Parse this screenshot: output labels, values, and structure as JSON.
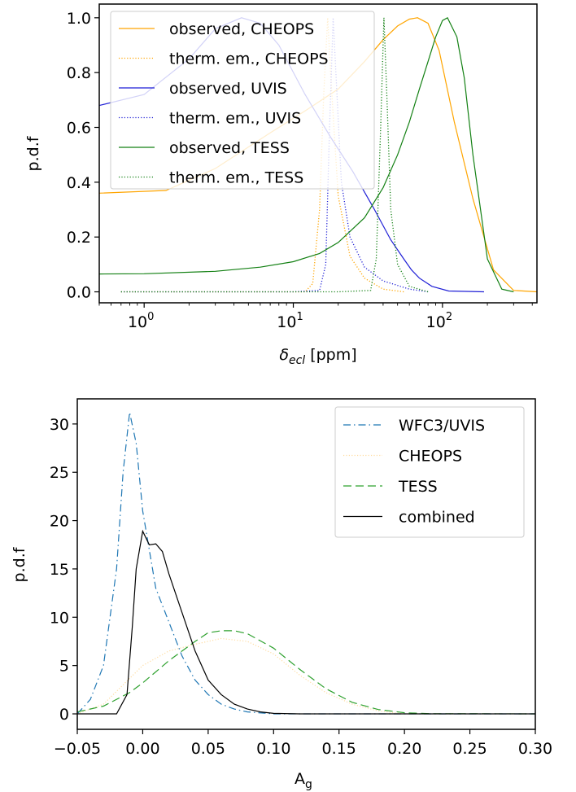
{
  "figure": {
    "top": {
      "ylabel": "p.d.f",
      "xlabel_symbol": "δ",
      "xlabel_sub": "ecl",
      "xlabel_unit": " [ppm]",
      "x_ticks": [
        {
          "base": "10",
          "exp": "0",
          "value": 1
        },
        {
          "base": "10",
          "exp": "1",
          "value": 10
        },
        {
          "base": "10",
          "exp": "2",
          "value": 100
        }
      ],
      "y_ticks": [
        "0.0",
        "0.2",
        "0.4",
        "0.6",
        "0.8",
        "1.0"
      ]
    },
    "bottom": {
      "ylabel": "p.d.f",
      "xlabel": "A",
      "xlabel_sub": "g",
      "x_ticks": [
        "−0.05",
        "0.00",
        "0.05",
        "0.10",
        "0.15",
        "0.20",
        "0.25",
        "0.30"
      ],
      "y_ticks": [
        "0",
        "5",
        "10",
        "15",
        "20",
        "25",
        "30"
      ]
    }
  },
  "chart_data": [
    {
      "type": "line",
      "xscale": "log",
      "xlim": [
        0.5,
        430
      ],
      "ylim": [
        -0.04,
        1.05
      ],
      "xlabel": "δ_ecl [ppm]",
      "ylabel": "p.d.f",
      "grid": false,
      "legend": "upper-left",
      "series": [
        {
          "name": "observed, CHEOPS",
          "color": "#ffa500",
          "style": "solid",
          "x": [
            0.5,
            1.4,
            3,
            7,
            12,
            20,
            30,
            40,
            50,
            60,
            68,
            80,
            95,
            120,
            160,
            220,
            300,
            430
          ],
          "y": [
            0.36,
            0.37,
            0.45,
            0.58,
            0.66,
            0.74,
            0.84,
            0.92,
            0.97,
            0.995,
            1.0,
            0.98,
            0.88,
            0.62,
            0.34,
            0.08,
            0.005,
            0.0
          ]
        },
        {
          "name": "therm. em., CHEOPS",
          "color": "#ffa500",
          "style": "dotted",
          "x": [
            0.7,
            5,
            12,
            13.5,
            15,
            16,
            17,
            18,
            20,
            24,
            30,
            40,
            55
          ],
          "y": [
            0.0,
            0.0,
            0.0,
            0.03,
            0.3,
            0.72,
            1.0,
            0.75,
            0.35,
            0.13,
            0.05,
            0.01,
            0.0
          ]
        },
        {
          "name": "observed, UVIS",
          "color": "#1f1fd6",
          "style": "solid",
          "x": [
            0.5,
            1.0,
            2,
            3,
            4.5,
            6,
            8,
            12,
            18,
            25,
            35,
            45,
            55,
            62,
            70,
            85,
            110,
            190
          ],
          "y": [
            0.68,
            0.72,
            0.85,
            0.96,
            1.0,
            0.98,
            0.9,
            0.72,
            0.56,
            0.44,
            0.3,
            0.19,
            0.12,
            0.08,
            0.05,
            0.02,
            0.003,
            0.0
          ]
        },
        {
          "name": "therm. em., UVIS",
          "color": "#1f1fd6",
          "style": "dotted",
          "x": [
            0.7,
            10,
            15,
            16.5,
            17.5,
            18.5,
            19.5,
            21,
            24,
            30,
            40,
            60,
            80
          ],
          "y": [
            0.0,
            0.0,
            0.005,
            0.1,
            0.6,
            1.0,
            0.75,
            0.4,
            0.2,
            0.09,
            0.04,
            0.01,
            0.0
          ]
        },
        {
          "name": "observed, TESS",
          "color": "#138013",
          "style": "solid",
          "x": [
            0.5,
            1.0,
            3,
            6,
            10,
            15,
            20,
            30,
            40,
            50,
            60,
            70,
            80,
            90,
            100,
            108,
            115,
            125,
            140,
            160,
            200,
            250,
            300
          ],
          "y": [
            0.065,
            0.066,
            0.075,
            0.09,
            0.11,
            0.14,
            0.18,
            0.27,
            0.38,
            0.5,
            0.62,
            0.74,
            0.84,
            0.93,
            0.99,
            1.0,
            0.97,
            0.93,
            0.78,
            0.5,
            0.12,
            0.01,
            0.0
          ]
        },
        {
          "name": "therm. em., TESS",
          "color": "#138013",
          "style": "dotted",
          "x": [
            0.7,
            20,
            33,
            36,
            38.5,
            40.5,
            42.5,
            45,
            50,
            60,
            80
          ],
          "y": [
            0.0,
            0.0,
            0.005,
            0.12,
            0.6,
            1.0,
            0.7,
            0.3,
            0.1,
            0.02,
            0.0
          ]
        }
      ]
    },
    {
      "type": "line",
      "xlim": [
        -0.05,
        0.3
      ],
      "ylim": [
        -1.6,
        32.6
      ],
      "xlabel": "A_g",
      "ylabel": "p.d.f",
      "grid": false,
      "legend": "upper-right",
      "series": [
        {
          "name": "WFC3/UVIS",
          "color": "#1f77b4",
          "style": "dashdot",
          "x": [
            -0.05,
            -0.04,
            -0.03,
            -0.02,
            -0.015,
            -0.01,
            -0.005,
            0.0,
            0.01,
            0.02,
            0.03,
            0.04,
            0.05,
            0.06,
            0.07,
            0.08,
            0.1,
            0.3
          ],
          "y": [
            0.0,
            1.5,
            5.0,
            15.0,
            25.0,
            31.2,
            28.0,
            21.0,
            13.0,
            9.5,
            6.0,
            3.5,
            2.0,
            1.0,
            0.5,
            0.2,
            0.0,
            0.0
          ]
        },
        {
          "name": "CHEOPS",
          "color": "#ffdca0",
          "style": "dotted",
          "x": [
            -0.05,
            -0.03,
            -0.015,
            0.0,
            0.02,
            0.04,
            0.06,
            0.08,
            0.1,
            0.12,
            0.14,
            0.16,
            0.18,
            0.2
          ],
          "y": [
            0.0,
            1.0,
            3.0,
            5.0,
            6.5,
            7.2,
            7.8,
            7.5,
            6.2,
            4.0,
            2.2,
            1.0,
            0.3,
            0.0
          ]
        },
        {
          "name": "TESS",
          "color": "#2ca02c",
          "style": "dashed",
          "x": [
            -0.05,
            -0.03,
            -0.01,
            0.0,
            0.02,
            0.04,
            0.05,
            0.06,
            0.07,
            0.08,
            0.1,
            0.12,
            0.14,
            0.16,
            0.18,
            0.2,
            0.22,
            0.3
          ],
          "y": [
            0.2,
            0.8,
            2.2,
            3.2,
            5.5,
            7.5,
            8.4,
            8.6,
            8.6,
            8.3,
            6.8,
            4.6,
            2.6,
            1.2,
            0.45,
            0.12,
            0.02,
            0.0
          ]
        },
        {
          "name": "combined",
          "color": "#000000",
          "style": "solid",
          "x": [
            -0.05,
            -0.02,
            -0.012,
            -0.008,
            -0.005,
            0.0,
            0.005,
            0.01,
            0.015,
            0.02,
            0.03,
            0.04,
            0.05,
            0.06,
            0.07,
            0.08,
            0.09,
            0.1,
            0.12,
            0.3
          ],
          "y": [
            0.0,
            0.0,
            2.0,
            9.0,
            15.0,
            18.9,
            17.5,
            17.6,
            16.8,
            14.5,
            10.5,
            6.5,
            3.5,
            2.0,
            1.0,
            0.5,
            0.2,
            0.05,
            0.0,
            0.0
          ]
        }
      ]
    }
  ]
}
